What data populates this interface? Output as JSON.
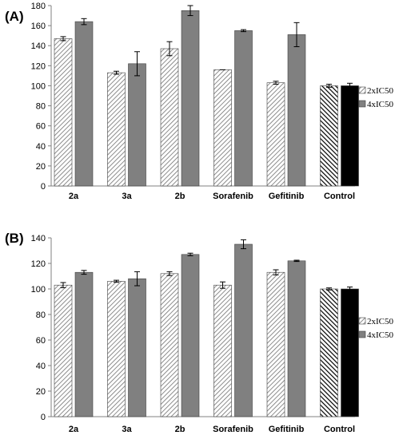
{
  "colors": {
    "series_2x_fill": "#ffffff",
    "series_2x_hatch": "#707070",
    "series_4x_fill": "#808080",
    "control_2x_stripe": "#000000",
    "control_4x_fill": "#000000",
    "axis": "#808080"
  },
  "chart_data": [
    {
      "type": "bar",
      "panel_label": "(A)",
      "categories": [
        "2a",
        "3a",
        "2b",
        "Sorafenib",
        "Gefitinib",
        "Control"
      ],
      "ylim": [
        0,
        180
      ],
      "yticks": [
        "0",
        "20",
        "40",
        "60",
        "80",
        "100",
        "120",
        "140",
        "160",
        "180"
      ],
      "legend": [
        "2xIC50",
        "4xIC50"
      ],
      "series": [
        {
          "name": "2xIC50",
          "values": [
            147,
            113,
            137,
            116,
            103,
            100
          ],
          "errors": [
            2,
            1.5,
            7,
            0,
            1.5,
            1.5
          ]
        },
        {
          "name": "4xIC50",
          "values": [
            164,
            122,
            175,
            155,
            151,
            100
          ],
          "errors": [
            3,
            12,
            5,
            1,
            12,
            2.5
          ]
        }
      ]
    },
    {
      "type": "bar",
      "panel_label": "(B)",
      "categories": [
        "2a",
        "3a",
        "2b",
        "Sorafenib",
        "Gefitinib",
        "Control"
      ],
      "ylim": [
        0,
        140
      ],
      "yticks": [
        "0",
        "20",
        "40",
        "60",
        "80",
        "100",
        "120",
        "140"
      ],
      "legend": [
        "2xIC50",
        "4xIC50"
      ],
      "series": [
        {
          "name": "2xIC50",
          "values": [
            103,
            106,
            112,
            103,
            113,
            100
          ],
          "errors": [
            2,
            0.8,
            1.5,
            2.5,
            2,
            0.8
          ]
        },
        {
          "name": "4xIC50",
          "values": [
            113,
            108,
            127,
            135,
            122,
            100
          ],
          "errors": [
            1.5,
            5.5,
            1,
            3.5,
            0.5,
            1.5
          ]
        }
      ]
    }
  ]
}
